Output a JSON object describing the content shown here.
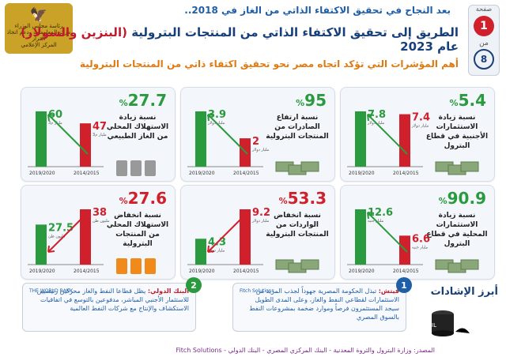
{
  "header": {
    "subtitle": "بعد النجاح في تحقيق الاكتفاء الذاتي من الغاز في 2018..",
    "title_main": "الطريق إلى تحقيق الاكتفاء الذاتي من المنتجات البترولية",
    "title_highlight": "(البنزين والسولار)",
    "title_year": "عام 2023",
    "tagline": "أهم المؤشرات التي تؤكد اتجاه مصر نحو تحقيق اكتفاء ذاتي من المنتجات البترولية",
    "logo_lines": [
      "رئاسة مجلس الوزراء",
      "مركز المعلومات ودعم اتخاذ القرار",
      "المركز الإعلامي"
    ],
    "issue": {
      "label": "صفحة",
      "number": "1",
      "of": "من",
      "total": "8"
    }
  },
  "cards": [
    {
      "id": "gas",
      "pct": "27.7",
      "unit": "%",
      "desc": "نسبة زيادة الاستهلاك المحلي من الغاز الطبيعي",
      "bars": [
        {
          "period": "2019/2020",
          "value": "60",
          "unit": "مليار م3"
        },
        {
          "period": "2014/2015",
          "value": "47",
          "unit": "مليار م3"
        }
      ],
      "trend": "up",
      "color": "#2a9a3e"
    },
    {
      "id": "exports",
      "pct": "95",
      "unit": "%",
      "desc": "نسبة ارتفاع الصادرات من المنتجات البترولية",
      "bars": [
        {
          "period": "2019/2020",
          "value": "3.9",
          "unit": "مليار دولار"
        },
        {
          "period": "2014/2015",
          "value": "2",
          "unit": "مليار دولار"
        }
      ],
      "trend": "up",
      "color": "#2a9a3e"
    },
    {
      "id": "foreign_inv",
      "pct": "5.4",
      "unit": "%",
      "desc": "نسبة زيادة الاستثمارات الأجنبية في قطاع البترول",
      "bars": [
        {
          "period": "2019/2020",
          "value": "7.8",
          "unit": "مليار دولار"
        },
        {
          "period": "2014/2015",
          "value": "7.4",
          "unit": "مليار دولار"
        }
      ],
      "trend": "up",
      "color": "#2a9a3e"
    },
    {
      "id": "consumption",
      "pct": "27.6",
      "unit": "%",
      "desc": "نسبة انخفاض الاستهلاك المحلي من المنتجات البترولية",
      "bars": [
        {
          "period": "2019/2020",
          "value": "27.5",
          "unit": "مليون طن"
        },
        {
          "period": "2014/2015",
          "value": "38",
          "unit": "مليون طن"
        }
      ],
      "trend": "down",
      "color": "#d0202c"
    },
    {
      "id": "imports",
      "pct": "53.3",
      "unit": "%",
      "desc": "نسبة انخفاض الواردات من المنتجات البترولية",
      "bars": [
        {
          "period": "2019/2020",
          "value": "4.3",
          "unit": "مليار دولار"
        },
        {
          "period": "2014/2015",
          "value": "9.2",
          "unit": "مليار دولار"
        }
      ],
      "trend": "down",
      "color": "#d0202c"
    },
    {
      "id": "local_inv",
      "pct": "90.9",
      "unit": "%",
      "desc": "نسبة زيادة الاستثمارات المحلية في قطاع البترول",
      "bars": [
        {
          "period": "2019/2020",
          "value": "12.6",
          "unit": "مليار جنيه"
        },
        {
          "period": "2014/2015",
          "value": "6.6",
          "unit": "مليار جنيه"
        }
      ],
      "trend": "up",
      "color": "#2a9a3e"
    }
  ],
  "indicators": {
    "title": "أبرز الإشادات",
    "notes": [
      {
        "num": "1",
        "source": "فيتش:",
        "text": "تبذل الحكومة المصرية جهوداً لجذب المزيد من الاستثمارات لقطاعي النفط والغاز، وعلى المدى الطويل سيجد المستثمرون فرصاً وموارد ضخمة بمشروعات النفط بالسوق المصري",
        "logo": "Fitch Solutions"
      },
      {
        "num": "2",
        "source": "البنك الدولي:",
        "text": "يظل قطاعا النفط والغاز محركين رئيسيين للاستثمار الأجنبي المباشر، مدفوعين بالتوسع في اتفاقيات الاستكشاف والإنتاج مع شركات النفط العالمية",
        "logo": "THE WORLD BANK"
      }
    ]
  },
  "footer": {
    "source": "المصدر: وزارة البترول والثروة المعدنية - البنك المركزي المصري - البنك الدولي - Fitch Solutions"
  }
}
